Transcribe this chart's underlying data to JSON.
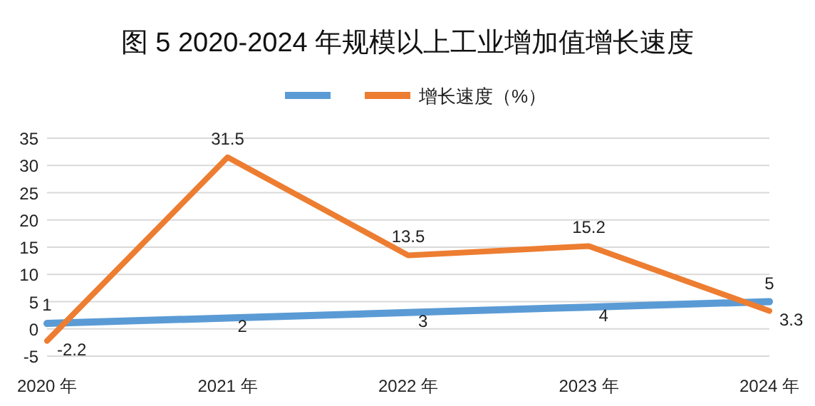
{
  "chart_data": {
    "type": "line",
    "title": "图 5  2020-2024 年规模以上工业增加值增长速度",
    "categories": [
      "2020 年",
      "2021 年",
      "2022 年",
      "2023 年",
      "2024 年"
    ],
    "series": [
      {
        "color": "#5b9bd5",
        "values": [
          1,
          2,
          3,
          4,
          5
        ]
      },
      {
        "name": "增长速度（%）",
        "color": "#ed7d31",
        "values": [
          -2.2,
          31.5,
          13.5,
          15.2,
          3.3
        ]
      }
    ],
    "ylim": [
      -5,
      35
    ],
    "yticks": [
      -5,
      0,
      5,
      10,
      15,
      20,
      25,
      30,
      35
    ],
    "grid": "y",
    "legend": "top",
    "data_labels": true
  }
}
